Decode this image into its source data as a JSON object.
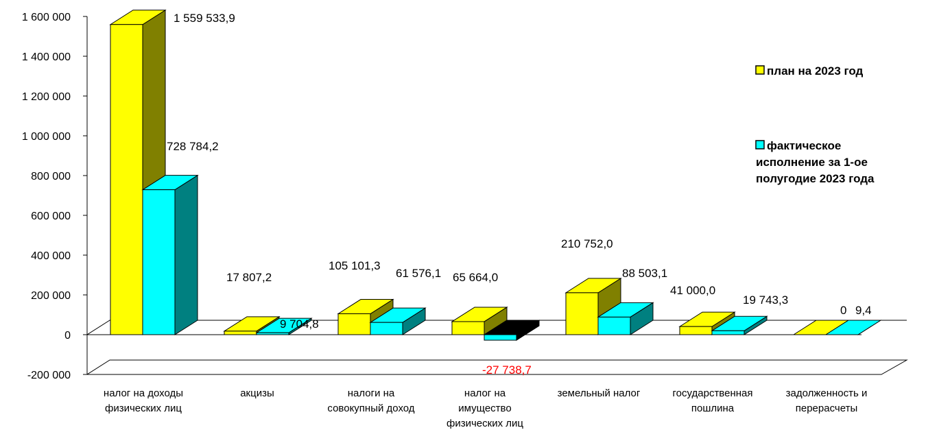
{
  "chart_data": {
    "type": "bar",
    "ylim": [
      -200000,
      1600000
    ],
    "y_ticks": [
      -200000,
      0,
      200000,
      400000,
      600000,
      800000,
      1000000,
      1200000,
      1400000,
      1600000
    ],
    "y_tick_labels": [
      "-200 000",
      "0",
      "200 000",
      "400 000",
      "600 000",
      "800 000",
      "1 000 000",
      "1 200 000",
      "1 400 000",
      "1 600 000"
    ],
    "categories": [
      [
        "налог на доходы",
        "физических лиц"
      ],
      [
        "акцизы"
      ],
      [
        "налоги на",
        "совокупный доход"
      ],
      [
        "налог на",
        "имущество",
        "физических лиц"
      ],
      [
        "земельный налог"
      ],
      [
        "государственная",
        "пошлина"
      ],
      [
        "задолженность и",
        "перерасчеты"
      ]
    ],
    "series": [
      {
        "name": "план на 2023 год",
        "color": "#FFFF00",
        "values": [
          1559533.9,
          17807.2,
          105101.3,
          65664.0,
          210752.0,
          41000.0,
          0
        ],
        "labels": [
          "1 559 533,9",
          "17 807,2",
          "105 101,3",
          "65 664,0",
          "210 752,0",
          "41 000,0",
          "0"
        ]
      },
      {
        "name_lines": [
          "фактическое",
          "исполнение за 1-ое",
          "полугодие 2023 года"
        ],
        "color": "#00FFFF",
        "values": [
          728784.2,
          9704.8,
          61576.1,
          -27738.7,
          88503.1,
          19743.3,
          9.4
        ],
        "labels": [
          "728 784,2",
          "9 704,8",
          "61 576,1",
          "-27 738,7",
          "88 503,1",
          "19 743,3",
          "9,4"
        ]
      }
    ],
    "negative_label_color": "#FF0000",
    "legend_position": "right",
    "grid": false
  }
}
